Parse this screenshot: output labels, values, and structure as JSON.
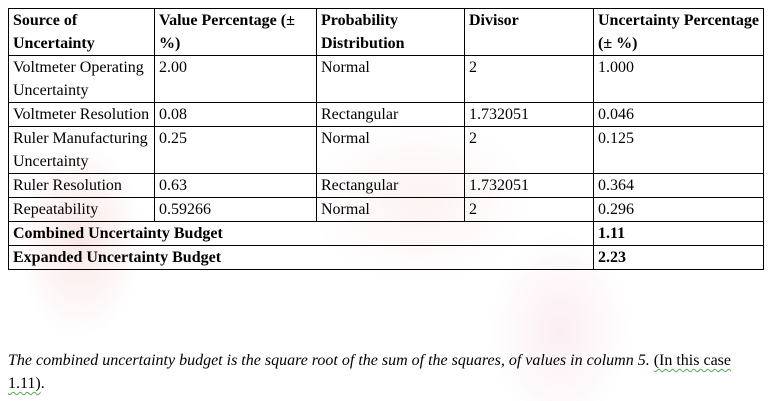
{
  "table": {
    "headers": [
      "Source of Uncertainty",
      "Value Percentage (± %)",
      "Probability Distribution",
      "Divisor",
      "Uncertainty Percentage (± %)"
    ],
    "rows": [
      [
        "Voltmeter Operating Uncertainty",
        "2.00",
        "Normal",
        "2",
        "1.000"
      ],
      [
        "Voltmeter Resolution",
        "0.08",
        "Rectangular",
        "1.732051",
        "0.046"
      ],
      [
        "Ruler Manufacturing Uncertainty",
        "0.25",
        "Normal",
        "2",
        "0.125"
      ],
      [
        "Ruler Resolution",
        "0.63",
        "Rectangular",
        "1.732051",
        "0.364"
      ],
      [
        "Repeatability",
        "0.59266",
        "Normal",
        "2",
        "0.296"
      ]
    ],
    "combined": {
      "label": "Combined Uncertainty Budget",
      "value": "1.11"
    },
    "expanded": {
      "label": "Expanded Uncertainty Budget",
      "value": "2.23"
    }
  },
  "caption": {
    "text": "The combined uncertainty budget is the square root of the sum of the squares, of values in column 5. ",
    "note": "(In this case 1.11)",
    "end": "."
  }
}
